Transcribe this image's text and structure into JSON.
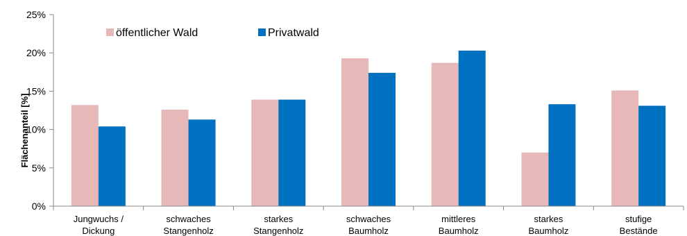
{
  "chart_data": {
    "type": "bar",
    "title": "",
    "xlabel": "",
    "ylabel": "Flächenanteil [%]",
    "ylim": [
      0,
      25
    ],
    "yticks": [
      0,
      5,
      10,
      15,
      20,
      25
    ],
    "ytick_labels": [
      "0%",
      "5%",
      "10%",
      "15%",
      "20%",
      "25%"
    ],
    "categories": [
      [
        "Jungwuchs /",
        "Dickung"
      ],
      [
        "schwaches",
        "Stangenholz"
      ],
      [
        "starkes",
        "Stangenholz"
      ],
      [
        "schwaches",
        "Baumholz"
      ],
      [
        "mittleres",
        "Baumholz"
      ],
      [
        "starkes",
        "Baumholz"
      ],
      [
        "stufige",
        "Bestände"
      ]
    ],
    "series": [
      {
        "name": "öffentlicher Wald",
        "color": "#E6B9B8",
        "values": [
          13.2,
          12.6,
          13.9,
          19.3,
          18.7,
          7.0,
          15.1
        ]
      },
      {
        "name": "Privatwald",
        "color": "#0070C0",
        "values": [
          10.4,
          11.3,
          13.9,
          17.4,
          20.3,
          13.3,
          13.1
        ]
      }
    ],
    "grid": false,
    "legend_position": "top-left"
  }
}
